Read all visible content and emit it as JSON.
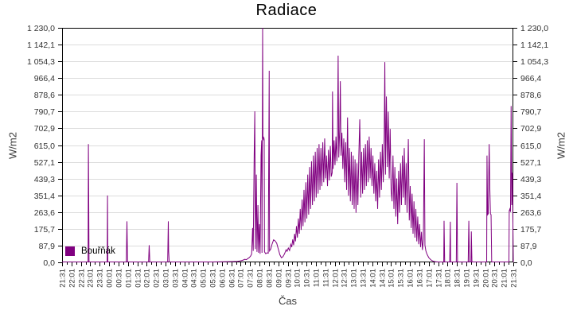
{
  "chart_data": {
    "type": "line",
    "title": "Radiace",
    "xlabel": "Čas",
    "ylabel_left": "W/m2",
    "ylabel_right": "W/m2",
    "ylim": [
      0,
      1230
    ],
    "x_range_minutes": [
      0,
      1440
    ],
    "grid": true,
    "background": "#ffffff",
    "grid_color": "#dcdcdc",
    "axis_color": "#000000",
    "tick_label_color": "#323232",
    "axis_label_color": "#3c3c3c",
    "legend": {
      "position": "bottom-left",
      "entries": [
        {
          "label": "Bouřňák",
          "color": "#800080"
        }
      ]
    },
    "y_ticks": [
      "0,0",
      "87,9",
      "175,7",
      "263,6",
      "351,4",
      "439,3",
      "527,1",
      "615,0",
      "702,9",
      "790,7",
      "878,6",
      "966,4",
      "1 054,3",
      "1 142,1",
      "1 230,0"
    ],
    "y_tick_values": [
      0,
      87.9,
      175.7,
      263.6,
      351.4,
      439.3,
      527.1,
      615.0,
      702.9,
      790.7,
      878.6,
      966.4,
      1054.3,
      1142.1,
      1230.0
    ],
    "x_ticks": [
      "21:31",
      "22:01",
      "22:31",
      "23:01",
      "23:31",
      "00:01",
      "00:31",
      "01:01",
      "01:31",
      "02:01",
      "02:31",
      "03:01",
      "03:31",
      "04:01",
      "04:31",
      "05:01",
      "05:31",
      "06:01",
      "06:31",
      "07:01",
      "07:31",
      "08:01",
      "08:31",
      "09:01",
      "09:31",
      "10:01",
      "10:31",
      "11:01",
      "11:31",
      "12:01",
      "12:31",
      "13:01",
      "13:31",
      "14:01",
      "14:31",
      "15:01",
      "15:31",
      "16:01",
      "16:31",
      "17:01",
      "17:31",
      "18:01",
      "18:31",
      "19:01",
      "19:31",
      "20:01",
      "20:31",
      "21:01",
      "21:31"
    ],
    "series": [
      {
        "name": "Bouřňák",
        "color": "#800080",
        "points_minute_value": [
          [
            0,
            2
          ],
          [
            25,
            2
          ],
          [
            50,
            2
          ],
          [
            75,
            2
          ],
          [
            83,
            2
          ],
          [
            84,
            620
          ],
          [
            85,
            350
          ],
          [
            86,
            2
          ],
          [
            110,
            2
          ],
          [
            135,
            2
          ],
          [
            144,
            2
          ],
          [
            145,
            351
          ],
          [
            146,
            2
          ],
          [
            175,
            2
          ],
          [
            205,
            2
          ],
          [
            207,
            215
          ],
          [
            209,
            2
          ],
          [
            240,
            2
          ],
          [
            276,
            2
          ],
          [
            278,
            90
          ],
          [
            280,
            2
          ],
          [
            310,
            2
          ],
          [
            337,
            2
          ],
          [
            339,
            215
          ],
          [
            340,
            60
          ],
          [
            342,
            2
          ],
          [
            375,
            2
          ],
          [
            410,
            2
          ],
          [
            445,
            2
          ],
          [
            480,
            2
          ],
          [
            515,
            3
          ],
          [
            545,
            4
          ],
          [
            560,
            5
          ],
          [
            566,
            7
          ],
          [
            572,
            9
          ],
          [
            578,
            12
          ],
          [
            583,
            16
          ],
          [
            588,
            14
          ],
          [
            593,
            20
          ],
          [
            598,
            26
          ],
          [
            602,
            34
          ],
          [
            605,
            44
          ],
          [
            608,
            180
          ],
          [
            610,
            60
          ],
          [
            613,
            560
          ],
          [
            615,
            792
          ],
          [
            617,
            70
          ],
          [
            620,
            460
          ],
          [
            622,
            55
          ],
          [
            625,
            300
          ],
          [
            627,
            50
          ],
          [
            630,
            200
          ],
          [
            632,
            45
          ],
          [
            635,
            560
          ],
          [
            637,
            640
          ],
          [
            638,
            50
          ],
          [
            640,
            1230
          ],
          [
            641,
            650
          ],
          [
            642,
            660
          ],
          [
            643,
            640
          ],
          [
            644,
            655
          ],
          [
            645,
            640
          ],
          [
            646,
            55
          ],
          [
            650,
            45
          ],
          [
            654,
            50
          ],
          [
            658,
            48
          ],
          [
            661,
            1005
          ],
          [
            662,
            60
          ],
          [
            666,
            70
          ],
          [
            670,
            95
          ],
          [
            675,
            118
          ],
          [
            680,
            112
          ],
          [
            685,
            100
          ],
          [
            690,
            70
          ],
          [
            695,
            40
          ],
          [
            700,
            24
          ],
          [
            705,
            30
          ],
          [
            710,
            45
          ],
          [
            715,
            66
          ],
          [
            718,
            58
          ],
          [
            722,
            75
          ],
          [
            726,
            62
          ],
          [
            730,
            95
          ],
          [
            733,
            80
          ],
          [
            736,
            120
          ],
          [
            739,
            90
          ],
          [
            742,
            150
          ],
          [
            745,
            110
          ],
          [
            748,
            190
          ],
          [
            751,
            130
          ],
          [
            754,
            230
          ],
          [
            757,
            150
          ],
          [
            760,
            280
          ],
          [
            763,
            170
          ],
          [
            766,
            330
          ],
          [
            769,
            190
          ],
          [
            772,
            380
          ],
          [
            775,
            210
          ],
          [
            778,
            420
          ],
          [
            781,
            230
          ],
          [
            784,
            460
          ],
          [
            787,
            250
          ],
          [
            790,
            500
          ],
          [
            793,
            280
          ],
          [
            796,
            530
          ],
          [
            799,
            300
          ],
          [
            802,
            560
          ],
          [
            805,
            320
          ],
          [
            808,
            580
          ],
          [
            811,
            340
          ],
          [
            814,
            600
          ],
          [
            817,
            360
          ],
          [
            820,
            620
          ],
          [
            823,
            380
          ],
          [
            826,
            600
          ],
          [
            829,
            400
          ],
          [
            832,
            630
          ],
          [
            835,
            420
          ],
          [
            838,
            650
          ],
          [
            841,
            440
          ],
          [
            844,
            560
          ],
          [
            847,
            400
          ],
          [
            850,
            590
          ],
          [
            853,
            430
          ],
          [
            856,
            610
          ],
          [
            859,
            450
          ],
          [
            862,
            470
          ],
          [
            863,
            896
          ],
          [
            865,
            490
          ],
          [
            868,
            640
          ],
          [
            871,
            510
          ],
          [
            874,
            660
          ],
          [
            877,
            530
          ],
          [
            879,
            680
          ],
          [
            881,
            1084
          ],
          [
            883,
            550
          ],
          [
            886,
            700
          ],
          [
            888,
            950
          ],
          [
            890,
            560
          ],
          [
            893,
            680
          ],
          [
            896,
            490
          ],
          [
            899,
            650
          ],
          [
            902,
            420
          ],
          [
            905,
            630
          ],
          [
            908,
            380
          ],
          [
            911,
            760
          ],
          [
            914,
            350
          ],
          [
            917,
            600
          ],
          [
            920,
            320
          ],
          [
            923,
            580
          ],
          [
            926,
            300
          ],
          [
            929,
            560
          ],
          [
            932,
            280
          ],
          [
            935,
            540
          ],
          [
            938,
            260
          ],
          [
            941,
            520
          ],
          [
            944,
            300
          ],
          [
            947,
            560
          ],
          [
            950,
            750
          ],
          [
            953,
            340
          ],
          [
            956,
            580
          ],
          [
            959,
            360
          ],
          [
            962,
            600
          ],
          [
            965,
            380
          ],
          [
            968,
            620
          ],
          [
            971,
            400
          ],
          [
            974,
            640
          ],
          [
            977,
            420
          ],
          [
            980,
            660
          ],
          [
            983,
            440
          ],
          [
            986,
            600
          ],
          [
            989,
            400
          ],
          [
            992,
            560
          ],
          [
            995,
            360
          ],
          [
            998,
            520
          ],
          [
            1001,
            320
          ],
          [
            1004,
            480
          ],
          [
            1007,
            280
          ],
          [
            1010,
            540
          ],
          [
            1013,
            340
          ],
          [
            1016,
            580
          ],
          [
            1019,
            380
          ],
          [
            1022,
            620
          ],
          [
            1025,
            420
          ],
          [
            1028,
            660
          ],
          [
            1030,
            1050
          ],
          [
            1032,
            460
          ],
          [
            1035,
            870
          ],
          [
            1038,
            500
          ],
          [
            1041,
            790
          ],
          [
            1044,
            440
          ],
          [
            1047,
            700
          ],
          [
            1050,
            380
          ],
          [
            1053,
            320
          ],
          [
            1056,
            560
          ],
          [
            1059,
            280
          ],
          [
            1062,
            500
          ],
          [
            1065,
            240
          ],
          [
            1068,
            440
          ],
          [
            1071,
            200
          ],
          [
            1074,
            480
          ],
          [
            1077,
            260
          ],
          [
            1080,
            520
          ],
          [
            1083,
            300
          ],
          [
            1086,
            560
          ],
          [
            1089,
            340
          ],
          [
            1092,
            600
          ],
          [
            1095,
            300
          ],
          [
            1098,
            520
          ],
          [
            1101,
            260
          ],
          [
            1105,
            646
          ],
          [
            1108,
            220
          ],
          [
            1111,
            400
          ],
          [
            1114,
            180
          ],
          [
            1117,
            360
          ],
          [
            1120,
            150
          ],
          [
            1123,
            320
          ],
          [
            1126,
            130
          ],
          [
            1129,
            280
          ],
          [
            1132,
            110
          ],
          [
            1135,
            240
          ],
          [
            1138,
            95
          ],
          [
            1141,
            200
          ],
          [
            1144,
            80
          ],
          [
            1147,
            160
          ],
          [
            1150,
            65
          ],
          [
            1153,
            120
          ],
          [
            1156,
            646
          ],
          [
            1158,
            90
          ],
          [
            1161,
            60
          ],
          [
            1164,
            45
          ],
          [
            1167,
            35
          ],
          [
            1170,
            25
          ],
          [
            1174,
            18
          ],
          [
            1178,
            12
          ],
          [
            1182,
            8
          ],
          [
            1186,
            5
          ],
          [
            1192,
            3
          ],
          [
            1200,
            2
          ],
          [
            1210,
            2
          ],
          [
            1218,
            2
          ],
          [
            1219,
            218
          ],
          [
            1221,
            2
          ],
          [
            1237,
            2
          ],
          [
            1239,
            213
          ],
          [
            1240,
            2
          ],
          [
            1258,
            2
          ],
          [
            1260,
            417
          ],
          [
            1262,
            2
          ],
          [
            1280,
            2
          ],
          [
            1296,
            2
          ],
          [
            1298,
            218
          ],
          [
            1300,
            2
          ],
          [
            1305,
            2
          ],
          [
            1306,
            162
          ],
          [
            1308,
            2
          ],
          [
            1325,
            2
          ],
          [
            1345,
            2
          ],
          [
            1355,
            2
          ],
          [
            1356,
            560
          ],
          [
            1358,
            250
          ],
          [
            1360,
            255
          ],
          [
            1363,
            620
          ],
          [
            1365,
            390
          ],
          [
            1367,
            255
          ],
          [
            1369,
            250
          ],
          [
            1371,
            2
          ],
          [
            1390,
            2
          ],
          [
            1412,
            2
          ],
          [
            1426,
            2
          ],
          [
            1427,
            270
          ],
          [
            1429,
            280
          ],
          [
            1431,
            265
          ],
          [
            1433,
            820
          ],
          [
            1435,
            300
          ],
          [
            1437,
            470
          ],
          [
            1440,
            2
          ]
        ]
      }
    ]
  }
}
